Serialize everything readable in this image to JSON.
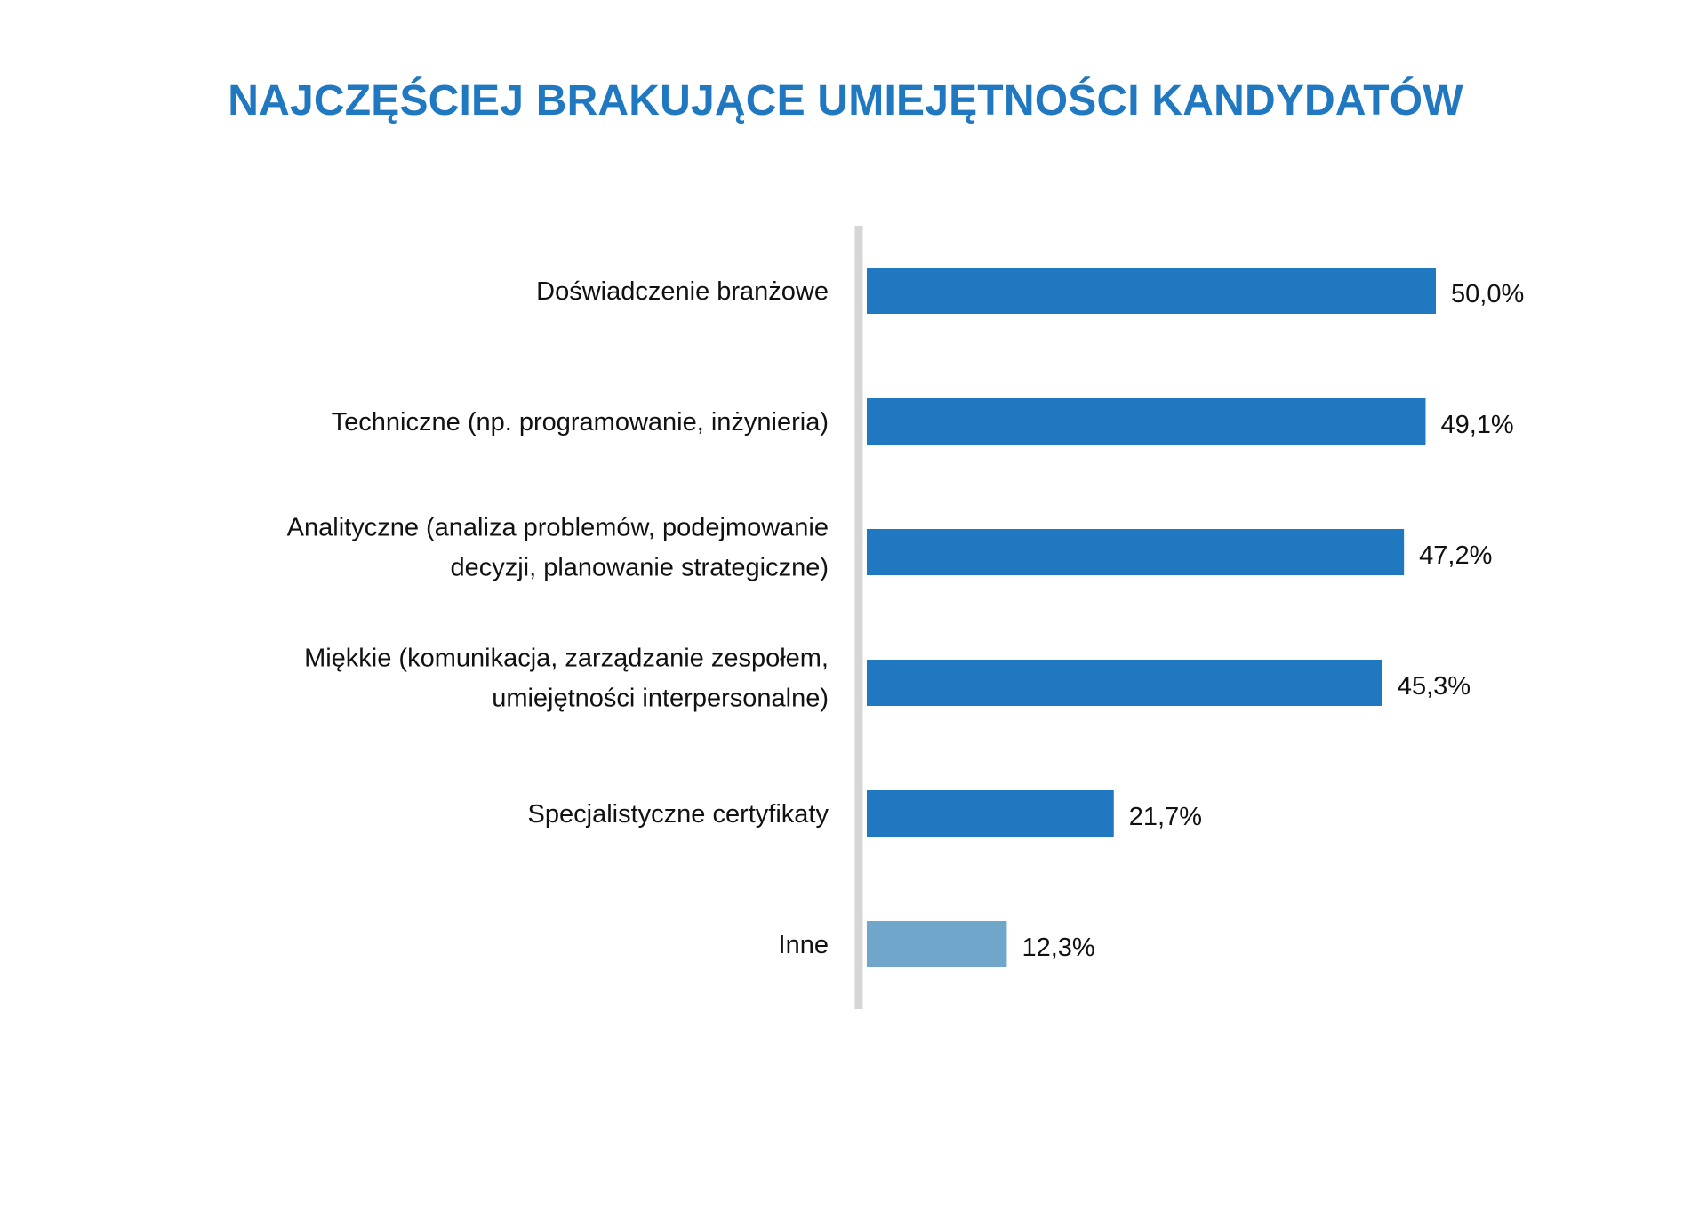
{
  "chart_data": {
    "type": "bar",
    "orientation": "horizontal",
    "title": "NAJCZĘŚCIEJ BRAKUJĄCE UMIEJĘTNOŚCI KANDYDATÓW",
    "xlabel": "",
    "ylabel": "",
    "grid": false,
    "xlim": [
      0,
      50
    ],
    "categories": [
      [
        "Doświadczenie branżowe"
      ],
      [
        "Techniczne (np. programowanie, inżynieria)"
      ],
      [
        "Analityczne (analiza problemów, podejmowanie",
        "decyzji, planowanie strategiczne)"
      ],
      [
        "Miękkie (komunikacja, zarządzanie zespołem,",
        "umiejętności interpersonalne)"
      ],
      [
        "Specjalistyczne certyfikaty"
      ],
      [
        "Inne"
      ]
    ],
    "values": [
      50.0,
      49.1,
      47.2,
      45.3,
      21.7,
      12.3
    ],
    "value_labels": [
      "50,0%",
      "49,1%",
      "47,2%",
      "45,3%",
      "21,7%",
      "12,3%"
    ],
    "colors": {
      "bar": "#1f78c0",
      "bar_other": "#6fa6c9",
      "axis": "#d6d6d6",
      "title": "#1f78c0"
    }
  }
}
